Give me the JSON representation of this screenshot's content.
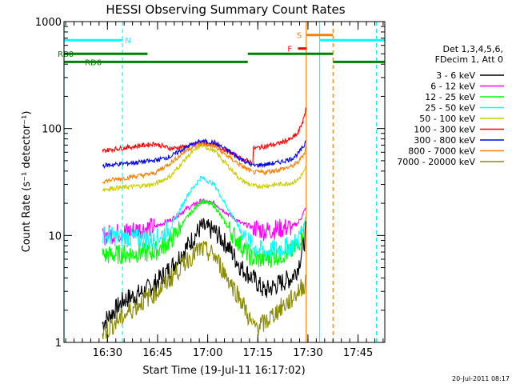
{
  "chart_data": {
    "type": "line",
    "title": "HESSI Observing Summary Count Rates",
    "xlabel": "Start Time (19-Jul-11 16:17:02)",
    "ylabel": "Count Rate (s⁻¹ detector⁻¹)",
    "y_scale": "log",
    "ylim": [
      1,
      1000
    ],
    "xlim_minutes_after_1617": [
      0,
      96
    ],
    "x_ticks": [
      {
        "t": 13,
        "label": "16:30"
      },
      {
        "t": 28,
        "label": "16:45"
      },
      {
        "t": 43,
        "label": "17:00"
      },
      {
        "t": 58,
        "label": "17:15"
      },
      {
        "t": 73,
        "label": "17:30"
      },
      {
        "t": 88,
        "label": "17:45"
      }
    ],
    "y_ticks": [
      {
        "v": 1,
        "label": "1"
      },
      {
        "v": 10,
        "label": "10"
      },
      {
        "v": 100,
        "label": "100"
      },
      {
        "v": 1000,
        "label": "1000"
      }
    ],
    "legend_header": [
      "Det 1,3,4,5,6,",
      "FDecim 1, Att 0"
    ],
    "legend_position": "right",
    "segments": [
      [
        11.5,
        27
      ],
      [
        27,
        56.5
      ],
      [
        56.5,
        72.5
      ]
    ],
    "series": [
      {
        "name": "3 - 6 keV",
        "color": "#000000",
        "values": [
          [
            11.5,
            1.5
          ],
          [
            18,
            2.5
          ],
          [
            24,
            3
          ],
          [
            27,
            3.5
          ],
          [
            32,
            5
          ],
          [
            37,
            8
          ],
          [
            41,
            12
          ],
          [
            45,
            11
          ],
          [
            49,
            8
          ],
          [
            53,
            5
          ],
          [
            56.5,
            4
          ],
          [
            60,
            3
          ],
          [
            64,
            3.5
          ],
          [
            68,
            4
          ],
          [
            70,
            5
          ],
          [
            72,
            9
          ],
          [
            72.5,
            12
          ]
        ]
      },
      {
        "name": "6 - 12 keV",
        "color": "#ff00ff",
        "values": [
          [
            11.5,
            10
          ],
          [
            27,
            12
          ],
          [
            32,
            14
          ],
          [
            37,
            18
          ],
          [
            41,
            21
          ],
          [
            45,
            20
          ],
          [
            49,
            16
          ],
          [
            53,
            13
          ],
          [
            56.5,
            12
          ],
          [
            60,
            11
          ],
          [
            64,
            11.5
          ],
          [
            68,
            12
          ],
          [
            70,
            13
          ],
          [
            72,
            17
          ],
          [
            72.5,
            19
          ]
        ]
      },
      {
        "name": "12 - 25 keV",
        "color": "#00ff00",
        "values": [
          [
            11.5,
            6.5
          ],
          [
            27,
            7
          ],
          [
            32,
            9
          ],
          [
            37,
            15
          ],
          [
            41,
            21
          ],
          [
            45,
            19
          ],
          [
            49,
            12
          ],
          [
            53,
            8
          ],
          [
            56.5,
            6
          ],
          [
            60,
            6
          ],
          [
            64,
            6.5
          ],
          [
            68,
            7
          ],
          [
            70,
            8
          ],
          [
            72,
            13
          ],
          [
            72.5,
            16
          ]
        ]
      },
      {
        "name": "25 - 50 keV",
        "color": "#00ffff",
        "values": [
          [
            11.5,
            10
          ],
          [
            27,
            9
          ],
          [
            32,
            12
          ],
          [
            37,
            24
          ],
          [
            41,
            35
          ],
          [
            45,
            30
          ],
          [
            49,
            18
          ],
          [
            53,
            11
          ],
          [
            56.5,
            8
          ],
          [
            60,
            7
          ],
          [
            64,
            7.5
          ],
          [
            68,
            8
          ],
          [
            70,
            9
          ],
          [
            72,
            13
          ],
          [
            72.5,
            15
          ]
        ]
      },
      {
        "name": "50 - 100 keV",
        "color": "#cccc00",
        "values": [
          [
            11.5,
            27
          ],
          [
            27,
            30
          ],
          [
            32,
            36
          ],
          [
            37,
            55
          ],
          [
            41,
            70
          ],
          [
            45,
            62
          ],
          [
            49,
            45
          ],
          [
            53,
            33
          ],
          [
            56.5,
            29
          ],
          [
            56.6,
            29
          ],
          [
            60,
            29
          ],
          [
            64,
            30
          ],
          [
            68,
            31
          ],
          [
            70,
            33
          ],
          [
            72,
            40
          ],
          [
            72.5,
            45
          ]
        ]
      },
      {
        "name": "100 - 300 keV",
        "color": "#ff0000",
        "values": [
          [
            11.5,
            62
          ],
          [
            27,
            72
          ],
          [
            32,
            65
          ],
          [
            37,
            68
          ],
          [
            41,
            74
          ],
          [
            45,
            70
          ],
          [
            49,
            62
          ],
          [
            53,
            52
          ],
          [
            56.5,
            48
          ],
          [
            56.6,
            65
          ],
          [
            60,
            68
          ],
          [
            64,
            72
          ],
          [
            68,
            80
          ],
          [
            70,
            90
          ],
          [
            72,
            130
          ],
          [
            72.5,
            170
          ]
        ]
      },
      {
        "name": "300 - 800 keV",
        "color": "#0000ff",
        "values": [
          [
            11.5,
            45
          ],
          [
            27,
            50
          ],
          [
            32,
            55
          ],
          [
            37,
            68
          ],
          [
            41,
            76
          ],
          [
            45,
            74
          ],
          [
            49,
            62
          ],
          [
            53,
            52
          ],
          [
            56.5,
            45
          ],
          [
            60,
            46
          ],
          [
            64,
            48
          ],
          [
            68,
            52
          ],
          [
            70,
            58
          ],
          [
            72,
            70
          ],
          [
            72.5,
            85
          ]
        ]
      },
      {
        "name": "800 - 7000 keV",
        "color": "#ff8000",
        "values": [
          [
            11.5,
            32
          ],
          [
            27,
            38
          ],
          [
            32,
            48
          ],
          [
            37,
            64
          ],
          [
            41,
            72
          ],
          [
            45,
            68
          ],
          [
            49,
            55
          ],
          [
            53,
            45
          ],
          [
            56.5,
            39
          ],
          [
            60,
            39
          ],
          [
            64,
            41
          ],
          [
            68,
            44
          ],
          [
            70,
            48
          ],
          [
            72,
            60
          ],
          [
            72.5,
            70
          ]
        ]
      },
      {
        "name": "7000 - 20000 keV",
        "color": "#8b8b00",
        "values": [
          [
            11.5,
            1.2
          ],
          [
            15,
            1.5
          ],
          [
            20,
            2
          ],
          [
            24,
            2.5
          ],
          [
            28,
            3
          ],
          [
            32,
            4
          ],
          [
            37,
            6
          ],
          [
            41,
            7.5
          ],
          [
            45,
            6.5
          ],
          [
            49,
            4
          ],
          [
            53,
            2.5
          ],
          [
            56.5,
            1.4
          ],
          [
            60,
            1.5
          ],
          [
            64,
            2
          ],
          [
            68,
            2.5
          ],
          [
            70,
            3
          ],
          [
            72,
            3.5
          ],
          [
            72.5,
            4
          ]
        ]
      }
    ],
    "observing_flags": [
      {
        "label": "N",
        "color": "#00ffff",
        "y": 670,
        "intervals": [
          [
            0,
            17.5
          ],
          [
            76.5,
            96
          ]
        ]
      },
      {
        "label": "S",
        "color": "#ff8000",
        "y": 750,
        "intervals": [
          [
            72.5,
            80.5
          ]
        ]
      },
      {
        "label": "F",
        "color": "#ff0000",
        "y": 560,
        "intervals": [
          [
            70,
            72.5
          ]
        ]
      },
      {
        "label": "RB0",
        "color": "#008000",
        "y": 500,
        "intervals": [
          [
            0,
            25
          ],
          [
            55,
            80.5
          ]
        ]
      },
      {
        "label": "RD6",
        "color": "#008000",
        "y": 420,
        "intervals": [
          [
            0,
            25
          ],
          [
            25,
            55
          ],
          [
            80.5,
            96
          ]
        ]
      }
    ],
    "vertical_markers": [
      {
        "t": 0,
        "color": "#00ffff",
        "style": "solid"
      },
      {
        "t": 17.5,
        "color": "#00ffff",
        "style": "dashed"
      },
      {
        "t": 72.5,
        "color": "#ff8000",
        "style": "solid"
      },
      {
        "t": 76.5,
        "color": "#00ffff",
        "style": "solid"
      },
      {
        "t": 80.5,
        "color": "#ff8000",
        "style": "dashed"
      },
      {
        "t": 93.5,
        "color": "#00ffff",
        "style": "dashed"
      }
    ]
  },
  "footer": {
    "timestamp": "20-Jul-2011 08:17"
  }
}
